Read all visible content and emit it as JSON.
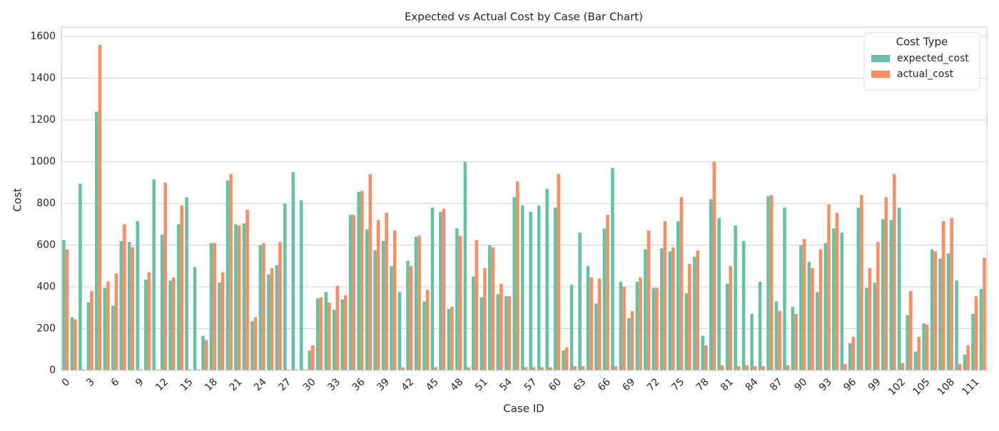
{
  "chart_data": {
    "type": "bar",
    "title": "Expected vs Actual Cost by Case (Bar Chart)",
    "x_label": "Case ID",
    "y_label": "Cost",
    "legend_title": "Cost Type",
    "legend": "upper right",
    "grid": true,
    "categories": [
      0,
      null,
      null,
      3,
      null,
      null,
      6,
      null,
      null,
      9,
      null,
      null,
      12,
      null,
      null,
      15,
      null,
      null,
      18,
      null,
      null,
      21,
      null,
      null,
      24,
      null,
      null,
      27,
      null,
      null,
      30,
      null,
      null,
      33,
      null,
      null,
      36,
      null,
      null,
      39,
      null,
      null,
      42,
      null,
      null,
      45,
      null,
      null,
      48,
      null,
      null,
      51,
      null,
      null,
      54,
      null,
      null,
      57,
      null,
      null,
      60,
      null,
      null,
      63,
      null,
      null,
      66,
      null,
      null,
      69,
      null,
      null,
      72,
      null,
      null,
      75,
      null,
      null,
      78,
      null,
      null,
      81,
      null,
      null,
      84,
      null,
      null,
      87,
      null,
      null,
      90,
      null,
      null,
      93,
      null,
      null,
      96,
      null,
      null,
      99,
      null,
      null,
      102,
      null,
      null,
      105,
      null,
      null,
      108,
      null,
      null,
      111,
      null
    ],
    "series": [
      {
        "name": "expected_cost",
        "color": "#66c2a5",
        "values": [
          625,
          255,
          895,
          325,
          1240,
          395,
          310,
          620,
          615,
          715,
          435,
          915,
          650,
          430,
          700,
          830,
          495,
          165,
          610,
          420,
          910,
          700,
          705,
          235,
          600,
          460,
          505,
          800,
          950,
          815,
          95,
          345,
          375,
          290,
          340,
          745,
          855,
          675,
          575,
          620,
          500,
          375,
          525,
          640,
          330,
          780,
          760,
          295,
          680,
          1000,
          450,
          350,
          600,
          365,
          355,
          830,
          790,
          760,
          790,
          870,
          780,
          95,
          410,
          660,
          500,
          320,
          680,
          970,
          425,
          250,
          425,
          580,
          395,
          585,
          570,
          715,
          370,
          545,
          165,
          820,
          730,
          415,
          695,
          620,
          270,
          425,
          835,
          330,
          780,
          305,
          600,
          520,
          375,
          610,
          680,
          660,
          130,
          780,
          395,
          420,
          725,
          720,
          780,
          265,
          90,
          225,
          580,
          535,
          560,
          430,
          75,
          270,
          390
        ]
      },
      {
        "name": "actual_cost",
        "color": "#fc8d62",
        "values": [
          580,
          245,
          5,
          380,
          1560,
          425,
          465,
          700,
          590,
          5,
          470,
          5,
          900,
          445,
          790,
          5,
          5,
          145,
          610,
          470,
          940,
          695,
          770,
          255,
          610,
          490,
          615,
          5,
          5,
          5,
          120,
          350,
          325,
          405,
          360,
          745,
          860,
          940,
          720,
          755,
          670,
          15,
          500,
          645,
          385,
          15,
          775,
          305,
          645,
          15,
          625,
          490,
          590,
          415,
          355,
          905,
          15,
          15,
          15,
          15,
          940,
          110,
          20,
          20,
          445,
          440,
          745,
          20,
          400,
          285,
          445,
          670,
          395,
          715,
          590,
          830,
          510,
          575,
          120,
          1000,
          25,
          500,
          20,
          25,
          20,
          20,
          840,
          285,
          25,
          270,
          630,
          490,
          580,
          795,
          755,
          30,
          160,
          840,
          490,
          615,
          830,
          940,
          35,
          380,
          160,
          220,
          570,
          715,
          730,
          30,
          120,
          355,
          540
        ]
      }
    ],
    "ylim": [
      0,
      1645
    ],
    "yticks": [
      0,
      200,
      400,
      600,
      800,
      1000,
      1200,
      1400,
      1600
    ]
  }
}
